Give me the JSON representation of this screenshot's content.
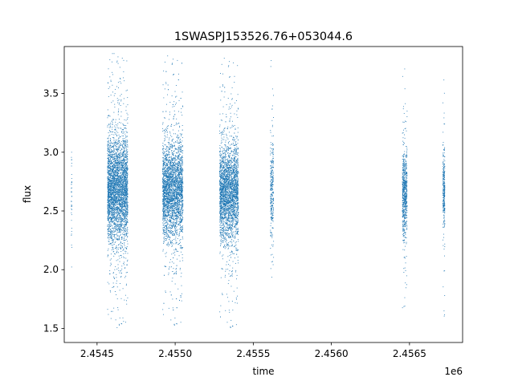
{
  "chart_data": {
    "type": "scatter",
    "title": "1SWASPJ153526.76+053044.6",
    "xlabel": "time",
    "ylabel": "flux",
    "x_offset_label": "1e6",
    "xlim": [
      2454290,
      2456840
    ],
    "ylim": [
      1.38,
      3.9
    ],
    "x_ticks": [
      2454500,
      2455000,
      2455500,
      2456000,
      2456500
    ],
    "x_tick_labels": [
      "2.4545",
      "2.4550",
      "2.4555",
      "2.4560",
      "2.4565"
    ],
    "y_ticks": [
      1.5,
      2.0,
      2.5,
      3.0,
      3.5
    ],
    "y_tick_labels": [
      "1.5",
      "2.0",
      "2.5",
      "3.0",
      "3.5"
    ],
    "grid": false,
    "marker_color": "#1f77b4",
    "clusters": [
      {
        "x_center": 2454337,
        "x_width": 4,
        "y_center": 2.6,
        "y_spread": 0.22,
        "y_min": 1.82,
        "y_max": 3.0,
        "count": 40
      },
      {
        "x_center": 2454632,
        "x_width": 130,
        "y_center": 2.68,
        "y_spread": 0.22,
        "y_min": 1.5,
        "y_max": 3.84,
        "count": 3600
      },
      {
        "x_center": 2454985,
        "x_width": 130,
        "y_center": 2.68,
        "y_spread": 0.2,
        "y_min": 1.5,
        "y_max": 3.82,
        "count": 3400
      },
      {
        "x_center": 2455345,
        "x_width": 120,
        "y_center": 2.66,
        "y_spread": 0.2,
        "y_min": 1.48,
        "y_max": 3.8,
        "count": 3000
      },
      {
        "x_center": 2455620,
        "x_width": 20,
        "y_center": 2.66,
        "y_spread": 0.2,
        "y_min": 1.55,
        "y_max": 3.78,
        "count": 300
      },
      {
        "x_center": 2456470,
        "x_width": 30,
        "y_center": 2.66,
        "y_spread": 0.18,
        "y_min": 1.52,
        "y_max": 3.77,
        "count": 700
      },
      {
        "x_center": 2456720,
        "x_width": 12,
        "y_center": 2.66,
        "y_spread": 0.16,
        "y_min": 1.57,
        "y_max": 3.64,
        "count": 300
      }
    ]
  }
}
